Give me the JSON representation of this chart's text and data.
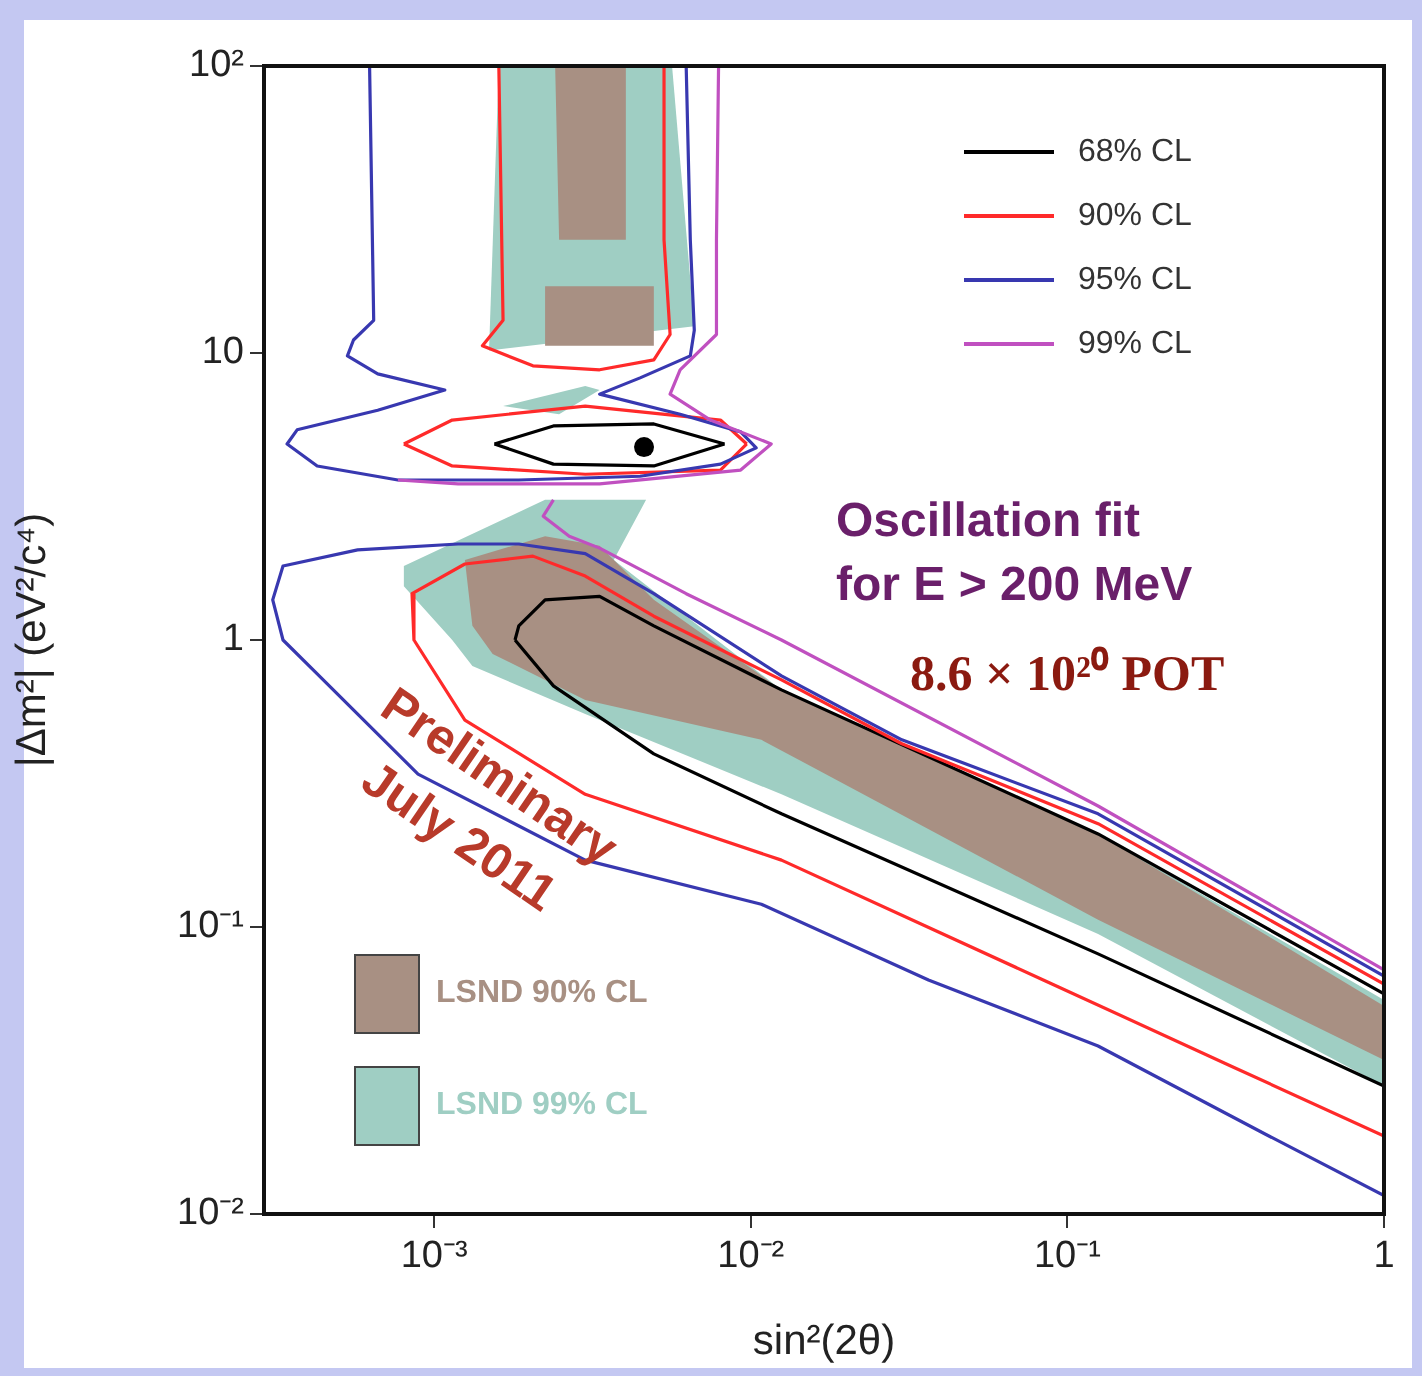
{
  "chart_data": {
    "type": "line",
    "xlabel": "sin²(2θ)",
    "ylabel": "|Δm²| (eV²/c⁴)",
    "log": "xy",
    "legend": "top right",
    "xlim": [
      0.00029,
      1
    ],
    "xticks": [
      {
        "value": 0.001,
        "label": "10⁻³"
      },
      {
        "value": 0.01,
        "label": "10⁻²"
      },
      {
        "value": 0.1,
        "label": "10⁻¹"
      },
      1
    ],
    "ylim": [
      0.01,
      100
    ],
    "yticks": [
      {
        "value": 0.01,
        "label": "10⁻²"
      },
      {
        "value": 0.1,
        "label": "10⁻¹"
      },
      1,
      10,
      {
        "value": 100,
        "label": "10²"
      }
    ],
    "series": [
      {
        "name": "LSND 99% CL",
        "type": "area",
        "color": "#9fcec3",
        "x": [
          0.0016,
          0.00564,
          0.00663,
          0.00149
        ],
        "values": [
          100,
          100,
          12.4,
          10.2
        ]
      },
      {
        "type": "area",
        "color": "#9fcec3",
        "x": [
          0.00165,
          0.003,
          0.00333,
          0.00248
        ],
        "values": [
          6.53,
          7.67,
          7.43,
          6.12
        ]
      },
      {
        "type": "area",
        "color": "#9fcec3",
        "x": [
          0.000802,
          0.00224,
          0.00467,
          0.00369,
          0.0125,
          0.125,
          1,
          1,
          0.125,
          0.0125,
          0.003,
          0.00132,
          0.00114,
          0.000802
        ],
        "values": [
          1.81,
          3.08,
          3.08,
          1.9,
          0.67,
          0.211,
          0.0557,
          0.0279,
          0.0946,
          0.29,
          0.552,
          0.811,
          1.0,
          1.54
        ]
      },
      {
        "name": "LSND 90% CL",
        "type": "area",
        "color": "#a89083",
        "x": [
          0.00241,
          0.00403,
          0.00403,
          0.00248
        ],
        "values": [
          100,
          100,
          24.8,
          24.8
        ]
      },
      {
        "type": "area",
        "color": "#a89083",
        "x": [
          0.00224,
          0.00494,
          0.00494,
          0.00224
        ],
        "values": [
          17.1,
          17.1,
          10.6,
          10.6
        ]
      },
      {
        "type": "area",
        "color": "#a89083",
        "x": [
          0.00125,
          0.00224,
          0.00333,
          0.00494,
          0.0125,
          0.125,
          1,
          1,
          0.125,
          0.0108,
          0.003,
          0.00153,
          0.00132
        ],
        "values": [
          1.9,
          2.3,
          2.13,
          1.38,
          0.67,
          0.211,
          0.0531,
          0.0344,
          0.106,
          0.449,
          0.618,
          0.894,
          1.12
        ]
      },
      {
        "name": "68% CL",
        "color": "#000000",
        "x": [
          0.00155,
          0.00238,
          0.00494,
          0.00826
        ],
        "values": [
          4.82,
          5.57,
          5.66,
          4.82
        ]
      },
      {
        "color": "#000000",
        "x": [
          0.00155,
          0.00238,
          0.00494,
          0.00826
        ],
        "values": [
          4.82,
          4.1,
          4.04,
          4.82
        ]
      },
      {
        "color": "#000000",
        "x": [
          0.0018,
          0.00185,
          0.00224,
          0.00333,
          0.00494,
          0.0125,
          0.125,
          1
        ],
        "values": [
          1.0,
          1.12,
          1.38,
          1.42,
          1.12,
          0.67,
          0.211,
          0.0585
        ]
      },
      {
        "color": "#000000",
        "x": [
          0.0018,
          0.00238,
          0.00494,
          0.0125,
          0.125,
          1
        ],
        "values": [
          1.0,
          0.692,
          0.401,
          0.248,
          0.0806,
          0.0279
        ]
      },
      {
        "name": "90% CL",
        "color": "#ff2a2a",
        "x": [
          0.0016,
          0.00165,
          0.00142,
          0.00205,
          0.00333,
          0.00494,
          0.00556,
          0.00532,
          0.00532
        ],
        "values": [
          100,
          13.0,
          10.6,
          9.02,
          8.74,
          9.46,
          11.6,
          24.8,
          100
        ]
      },
      {
        "color": "#ff2a2a",
        "x": [
          0.000802,
          0.00114,
          0.003,
          0.00802,
          0.00971
        ],
        "values": [
          4.82,
          5.84,
          6.53,
          5.84,
          4.82
        ]
      },
      {
        "color": "#ff2a2a",
        "x": [
          0.000802,
          0.00114,
          0.003,
          0.00802,
          0.00971
        ],
        "values": [
          4.82,
          4.04,
          3.78,
          3.91,
          4.82
        ]
      },
      {
        "color": "#ff2a2a",
        "x": [
          1,
          0.125,
          0.03,
          0.0125,
          0.00494,
          0.003,
          0.00205,
          0.00125,
          0.000851,
          0.000863,
          0.00125,
          0.003,
          0.0125,
          0.0839,
          0.328,
          1
        ],
        "values": [
          0.0633,
          0.229,
          0.435,
          0.726,
          1.21,
          1.67,
          1.96,
          1.84,
          1.45,
          1.0,
          0.526,
          0.29,
          0.171,
          0.0654,
          0.0328,
          0.0187
        ]
      },
      {
        "name": "95% CL",
        "color": "#3838b0",
        "x": [
          0.000625,
          0.000635,
          0.000644,
          0.000556,
          0.000532,
          0.000663,
          0.00108,
          0.000663,
          0.000369,
          0.000343,
          0.000427,
          0.000768,
          0.00185,
          0.00447,
          0.00802,
          0.0104,
          0.00929,
          0.00598,
          0.00333,
          0.00447,
          0.00644,
          0.00663,
          0.00644,
          0.00625
        ],
        "values": [
          100,
          34.1,
          13.0,
          11.1,
          9.77,
          8.46,
          7.43,
          6.32,
          5.4,
          4.82,
          4.04,
          3.61,
          3.61,
          3.72,
          4.1,
          4.67,
          5.31,
          6.12,
          7.19,
          8.19,
          9.77,
          12.0,
          24.8,
          100
        ]
      },
      {
        "color": "#3838b0",
        "x": [
          1,
          0.125,
          0.03,
          0.0125,
          0.00494,
          0.003,
          0.00185,
          0.00119,
          0.000573,
          0.000333,
          0.000309,
          0.000333,
          0.000427,
          0.000889,
          0.003,
          0.0108,
          0.0364,
          0.125,
          0.421,
          1
        ],
        "values": [
          0.0675,
          0.248,
          0.449,
          0.75,
          1.45,
          2.0,
          2.16,
          2.16,
          2.06,
          1.81,
          1.38,
          1.0,
          0.762,
          0.341,
          0.171,
          0.12,
          0.0654,
          0.0385,
          0.019,
          0.0116
        ]
      },
      {
        "name": "99% CL",
        "color": "#c050c0",
        "x": [
          0.00791,
          0.00779,
          0.00779,
          0.00598,
          0.00556,
          0.00746,
          0.0116,
          0.00929,
          0.00333,
          0.00119,
          0.000768
        ],
        "values": [
          100,
          24.8,
          11.6,
          8.74,
          7.19,
          5.84,
          4.82,
          3.91,
          3.5,
          3.5,
          3.61
        ]
      },
      {
        "color": "#c050c0",
        "x": [
          0.00238,
          0.00221,
          0.00267,
          0.00333,
          0.00625,
          0.0125,
          0.125,
          1
        ],
        "values": [
          3.08,
          2.7,
          2.3,
          2.09,
          1.45,
          1.0,
          0.264,
          0.0709
        ]
      },
      {
        "type": "scatter",
        "color": "#000000",
        "marker": "circle",
        "x": [
          0.0046
        ],
        "values": [
          4.7
        ]
      }
    ],
    "annotations": [
      "Oscillation fit",
      "for E > 200 MeV",
      "8.6 × 10²⁰ POT",
      "Preliminary",
      "July 2011"
    ]
  }
}
